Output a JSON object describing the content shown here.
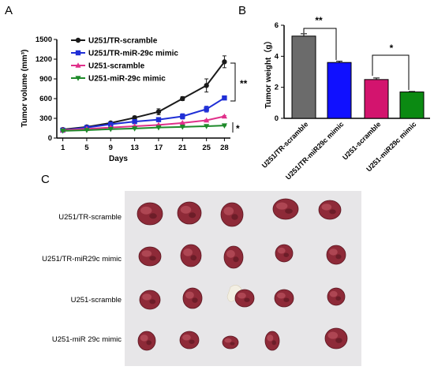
{
  "panel_letters": [
    "A",
    "B",
    "C"
  ],
  "colors": {
    "U251/TR-scramble": "#1a1a1a",
    "U251/TR-miR-29c mimic": "#1f2fd6",
    "U251-scramble": "#e0308a",
    "U251-miR-29c mimic": "#1e8a2a",
    "bar_gray": "#6b6b6b",
    "bar_blue": "#1010ff",
    "bar_pink": "#d3146e",
    "bar_green": "#0b8a12",
    "photo_bg": "#e7e6e8"
  },
  "chart_data": [
    {
      "panel": "A",
      "type": "line",
      "xlabel": "Days",
      "ylabel": "Tumor volume (mm³)",
      "x": [
        1,
        5,
        9,
        13,
        17,
        21,
        25,
        28
      ],
      "x_ticks": [
        "1",
        "5",
        "9",
        "13",
        "17",
        "21",
        "25",
        "28"
      ],
      "y_ticks": [
        "0",
        "300",
        "600",
        "900",
        "1200",
        "1500"
      ],
      "ylim": [
        0,
        1500
      ],
      "legend_position": "top-left",
      "series": [
        {
          "name": "U251/TR-scramble",
          "marker": "circle",
          "values": [
            130,
            170,
            230,
            310,
            400,
            600,
            800,
            1160
          ],
          "err": [
            10,
            12,
            18,
            25,
            45,
            30,
            100,
            90
          ]
        },
        {
          "name": "U251/TR-miR-29c mimic",
          "marker": "square",
          "values": [
            120,
            160,
            210,
            250,
            280,
            330,
            440,
            610
          ],
          "err": [
            8,
            10,
            15,
            25,
            30,
            40,
            45,
            15
          ]
        },
        {
          "name": "U251-scramble",
          "marker": "triangle-up",
          "values": [
            120,
            140,
            160,
            180,
            200,
            230,
            270,
            330
          ],
          "err": [
            5,
            6,
            6,
            8,
            8,
            10,
            10,
            12
          ]
        },
        {
          "name": "U251-miR-29c mimic",
          "marker": "triangle-down",
          "values": [
            110,
            120,
            135,
            145,
            160,
            170,
            180,
            190
          ],
          "err": [
            5,
            5,
            5,
            5,
            6,
            6,
            6,
            6
          ]
        }
      ],
      "annotations": [
        "**",
        "*"
      ]
    },
    {
      "panel": "B",
      "type": "bar",
      "ylabel": "Tumor weight（g）",
      "categories": [
        "U251/TR-scramble",
        "U251/TR-miR29c mimic",
        "U251-scramble",
        "U251-miR29c mimic"
      ],
      "values": [
        5.3,
        3.6,
        2.5,
        1.7
      ],
      "err": [
        0.15,
        0.08,
        0.1,
        0.03
      ],
      "y_ticks": [
        "0",
        "2",
        "4",
        "6"
      ],
      "ylim": [
        0,
        6
      ],
      "annotations": [
        "**",
        "*"
      ]
    }
  ],
  "photo": {
    "row_labels": [
      "U251/TR-scramble",
      "U251/TR-miR29c mimic",
      "U251-scramble",
      "U251-miR 29c mimic"
    ]
  }
}
